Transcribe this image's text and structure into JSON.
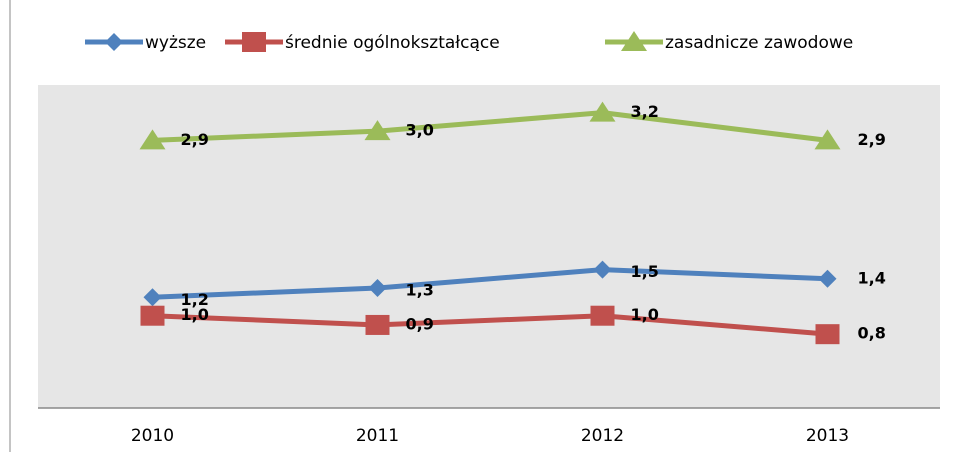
{
  "chart_data": {
    "type": "line",
    "categories": [
      "2010",
      "2011",
      "2012",
      "2013"
    ],
    "series": [
      {
        "name": "wyższe",
        "color": "#4f81bd",
        "marker": "diamond",
        "values": [
          1.2,
          1.3,
          1.5,
          1.4
        ],
        "value_labels": [
          "1,2",
          "1,3",
          "1,5",
          "1,4"
        ]
      },
      {
        "name": "średnie ogólnokształcące",
        "color": "#c0504d",
        "marker": "square",
        "values": [
          1.0,
          0.9,
          1.0,
          0.8
        ],
        "value_labels": [
          "1,0",
          "0,9",
          "1,0",
          "0,8"
        ]
      },
      {
        "name": "zasadnicze zawodowe",
        "color": "#9bbb59",
        "marker": "triangle",
        "values": [
          2.9,
          3.0,
          3.2,
          2.9
        ],
        "value_labels": [
          "2,9",
          "3,0",
          "3,2",
          "2,9"
        ]
      }
    ],
    "ylim": [
      0,
      3.5
    ],
    "legend": "top"
  }
}
